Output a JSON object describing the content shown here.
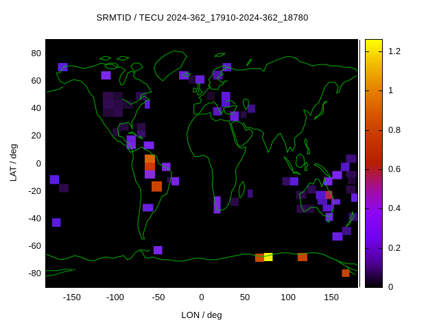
{
  "title": "SRMTID / TECU 2024-362_17910-2024-362_18780",
  "axes": {
    "x_label": "LON / deg",
    "y_label": "LAT / deg"
  },
  "map": {
    "background_color": "#000000",
    "coastline_color": "#00b400"
  },
  "chart_data": {
    "type": "heatmap",
    "title": "SRMTID / TECU 2024-362_17910-2024-362_18780",
    "xlabel": "LON / deg",
    "ylabel": "LAT / deg",
    "xlim": [
      -180,
      180
    ],
    "ylim": [
      -90,
      90
    ],
    "x_ticks": [
      -150,
      -100,
      -50,
      0,
      50,
      100,
      150
    ],
    "y_ticks": [
      80,
      60,
      40,
      20,
      0,
      -20,
      -40,
      -60,
      -80
    ],
    "grid": false,
    "colorbar": {
      "min": 0,
      "max": 1.26,
      "tick_values": [
        0,
        0.2,
        0.4,
        0.6,
        0.8,
        1.0,
        1.2
      ],
      "tick_labels": [
        "0",
        "0.2",
        "0.4",
        "0.6",
        "0.8",
        "1",
        "1.2"
      ],
      "palette": "gnuplot-pm3d-black-purple-orange-yellow",
      "gradient_stops": [
        [
          "0",
          "#000000"
        ],
        [
          "0.1",
          "#510096"
        ],
        [
          "0.2",
          "#7202F3"
        ],
        [
          "0.3",
          "#8C07F3"
        ],
        [
          "0.4",
          "#A11096"
        ],
        [
          "0.5",
          "#B42000"
        ],
        [
          "0.6",
          "#C63700"
        ],
        [
          "0.7",
          "#D55700"
        ],
        [
          "0.8",
          "#E48300"
        ],
        [
          "0.9",
          "#F2BA00"
        ],
        [
          "1.0",
          "#FFFF00"
        ]
      ]
    },
    "cells_format": [
      "lon_west",
      "lat_south",
      "lon_east",
      "lat_north",
      "color",
      "tecu_value"
    ],
    "cells": [
      [
        -166,
        67,
        -155,
        73,
        "#5a1ee0",
        0.19
      ],
      [
        -116,
        61,
        -105,
        67,
        "#7a2ae8",
        0.27
      ],
      [
        -114,
        46,
        -102,
        52,
        "#2e0a48",
        0.07
      ],
      [
        -102,
        46,
        -91,
        52,
        "#1f0832",
        0.05
      ],
      [
        -76,
        46,
        -64,
        52,
        "#2c0a4e",
        0.07
      ],
      [
        -114,
        40,
        -102,
        46,
        "#300b52",
        0.08
      ],
      [
        -102,
        40,
        -91,
        46,
        "#2a0a44",
        0.07
      ],
      [
        -91,
        40,
        -79,
        46,
        "#1d0730",
        0.04
      ],
      [
        -66,
        40,
        -60,
        46,
        "#5e1cd8",
        0.19
      ],
      [
        -114,
        34,
        -102,
        40,
        "#230839",
        0.05
      ],
      [
        -102,
        34,
        -91,
        40,
        "#2d0a4a",
        0.07
      ],
      [
        -103,
        20,
        -94,
        26,
        "#22083a",
        0.05
      ],
      [
        -96,
        24,
        -85,
        30,
        "#26083c",
        0.06
      ],
      [
        -75,
        24,
        -65,
        29.5,
        "#2a0a44",
        0.07
      ],
      [
        -75,
        19,
        -65,
        24,
        "#3b0e6e",
        0.11
      ],
      [
        -87,
        15.5,
        -76,
        20.5,
        "#6f1fe0",
        0.24
      ],
      [
        -87,
        10.5,
        -76,
        15.5,
        "#7a22e8",
        0.27
      ],
      [
        -67,
        10.5,
        -55,
        16,
        "#7a26ec",
        0.27
      ],
      [
        -66,
        0.5,
        -54,
        6.5,
        "#d96400",
        0.85
      ],
      [
        -66,
        -5,
        -54,
        0.5,
        "#cc3a00",
        0.72
      ],
      [
        -66,
        -11,
        -54,
        -5,
        "#8a2be0",
        0.32
      ],
      [
        -68,
        -35,
        -56,
        -29.5,
        "#6a1fe0",
        0.22
      ],
      [
        -58,
        -20.5,
        -46,
        -13,
        "#cc4400",
        0.72
      ],
      [
        -46,
        -5.5,
        -36,
        0.5,
        "#7f24e8",
        0.27
      ],
      [
        -40,
        -14,
        -33,
        -10,
        "#2e0a4c",
        0.07
      ],
      [
        -35,
        -16,
        -26,
        -10,
        "#7a22e8",
        0.27
      ],
      [
        -173,
        -46,
        -163,
        -40,
        "#5a1ae0",
        0.19
      ],
      [
        -175.5,
        -15,
        -165,
        -8.5,
        "#5c1ce0",
        0.19
      ],
      [
        -165,
        -21,
        -154,
        -15,
        "#2c0a48",
        0.07
      ],
      [
        -55.5,
        -66,
        -45.5,
        -60,
        "#7a26ec",
        0.27
      ],
      [
        -26,
        61,
        -15,
        67,
        "#6a1fe0",
        0.22
      ],
      [
        -15,
        58,
        -7,
        64,
        "#200838",
        0.05
      ],
      [
        -7,
        58,
        3,
        64,
        "#6a1fd8",
        0.22
      ],
      [
        13,
        61,
        24,
        67.5,
        "#4e14a8",
        0.14
      ],
      [
        24,
        67,
        34,
        73,
        "#5c1cd0",
        0.19
      ],
      [
        6,
        46,
        15,
        52,
        "#1c0828",
        0.04
      ],
      [
        23,
        46,
        33,
        52,
        "#6018d8",
        0.22
      ],
      [
        23,
        41,
        33,
        46,
        "#5515c8",
        0.17
      ],
      [
        13,
        35,
        23,
        41,
        "#5a17c0",
        0.17
      ],
      [
        33,
        31,
        43,
        38,
        "#6b1fe0",
        0.22
      ],
      [
        45,
        33,
        52,
        38,
        "#2a0a44",
        0.07
      ],
      [
        53,
        37,
        62,
        43,
        "#40108a",
        0.12
      ],
      [
        14,
        -30,
        22,
        -24,
        "#7a22e8",
        0.27
      ],
      [
        14,
        -36.5,
        22,
        -30,
        "#7a22e8",
        0.27
      ],
      [
        33,
        -31,
        43,
        -25,
        "#2c0a48",
        0.07
      ],
      [
        53,
        -25,
        59,
        -19,
        "#3c0e7a",
        0.11
      ],
      [
        93,
        -16,
        102,
        -10,
        "#330c62",
        0.09
      ],
      [
        102,
        -16,
        112,
        -10,
        "#5a1cd8",
        0.17
      ],
      [
        109,
        -26,
        121,
        -20,
        "#2a0a44",
        0.07
      ],
      [
        122,
        -22,
        132,
        -16,
        "#300b55",
        0.08
      ],
      [
        132,
        -26,
        143,
        -20,
        "#5518d0",
        0.17
      ],
      [
        143,
        -26,
        151,
        -20,
        "#b52552",
        0.55
      ],
      [
        110,
        -36,
        120.5,
        -30,
        "#2e0a4c",
        0.07
      ],
      [
        120.5,
        -36,
        130,
        -30,
        "#27083e",
        0.06
      ],
      [
        134,
        -30,
        145,
        -26,
        "#5015b8",
        0.17
      ],
      [
        140,
        -35,
        152,
        -30,
        "#5a18d0",
        0.17
      ],
      [
        150,
        -30,
        160,
        -26,
        "#6a1fe0",
        0.22
      ],
      [
        143,
        -42,
        152,
        -36,
        "#6e20e4",
        0.24
      ],
      [
        151,
        -56,
        163,
        -50,
        "#6a1fe0",
        0.22
      ],
      [
        162,
        -52,
        173,
        -46,
        "#40108a",
        0.12
      ],
      [
        170,
        -42,
        180,
        -36,
        "#3c0e7c",
        0.11
      ],
      [
        151,
        -11.5,
        162,
        -5.5,
        "#7a26ec",
        0.27
      ],
      [
        141,
        -16,
        151,
        -10,
        "#7a26ec",
        0.27
      ],
      [
        161,
        -5.5,
        171,
        0.5,
        "#5518c8",
        0.17
      ],
      [
        167,
        0.5,
        179,
        6.5,
        "#3c0e7c",
        0.11
      ],
      [
        167,
        -10,
        179,
        -5.5,
        "#300b55",
        0.08
      ],
      [
        169,
        -15,
        178,
        -10,
        "#22083a",
        0.05
      ],
      [
        173,
        -28,
        180,
        -22,
        "#6a1fe0",
        0.22
      ],
      [
        167,
        -22,
        178,
        -16,
        "#2c0a48",
        0.07
      ],
      [
        62,
        -71.5,
        72,
        -65.5,
        "#cc4a00",
        0.72
      ],
      [
        72,
        -71,
        82,
        -65,
        "#f2ee12",
        1.25
      ],
      [
        111,
        -71,
        122,
        -65,
        "#cc4200",
        0.72
      ],
      [
        162,
        -82.5,
        171,
        -77,
        "#c84400",
        0.72
      ]
    ]
  }
}
